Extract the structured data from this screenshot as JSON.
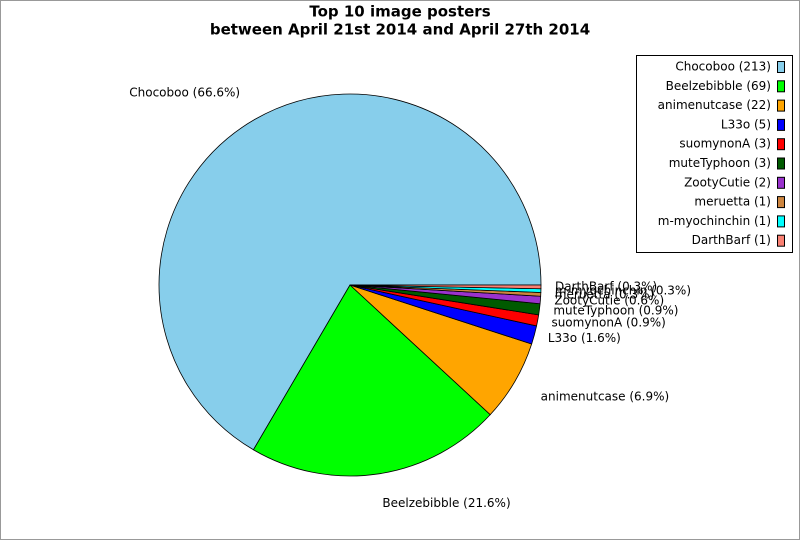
{
  "chart_data": {
    "type": "pie",
    "title": "Top 10 image posters",
    "subtitle": "between April 21st 2014 and April 27th 2014",
    "values": [
      213,
      69,
      22,
      5,
      3,
      3,
      2,
      1,
      1,
      1
    ],
    "value_labels": [
      "Chocoboo (213)",
      "Beelzebibble (69)",
      "animenutcase (22)",
      "L33o (5)",
      "suomynonA (3)",
      "muteTyphoon (3)",
      "ZootyCutie (2)",
      "meruetta (1)",
      "m-myochinchin (1)",
      "DarthBarf (1)"
    ],
    "slice_labels": [
      "Chocoboo (66.6%)",
      "Beelzebibble (21.6%)",
      "animenutcase (6.9%)",
      "L33o (1.6%)",
      "suomynonA (0.9%)",
      "muteTyphoon (0.9%)",
      "ZootyCutie (0.6%)",
      "meruetta (0.3%)",
      "m-myochinchin (0.3%)",
      "DarthBarf (0.3%)"
    ],
    "colors": [
      "#87ceeb",
      "#00ff00",
      "#ffa500",
      "#0000ff",
      "#ff0000",
      "#005a00",
      "#9a32cd",
      "#cd853f",
      "#00ffff",
      "#fa8072"
    ],
    "legend": "top-right"
  }
}
